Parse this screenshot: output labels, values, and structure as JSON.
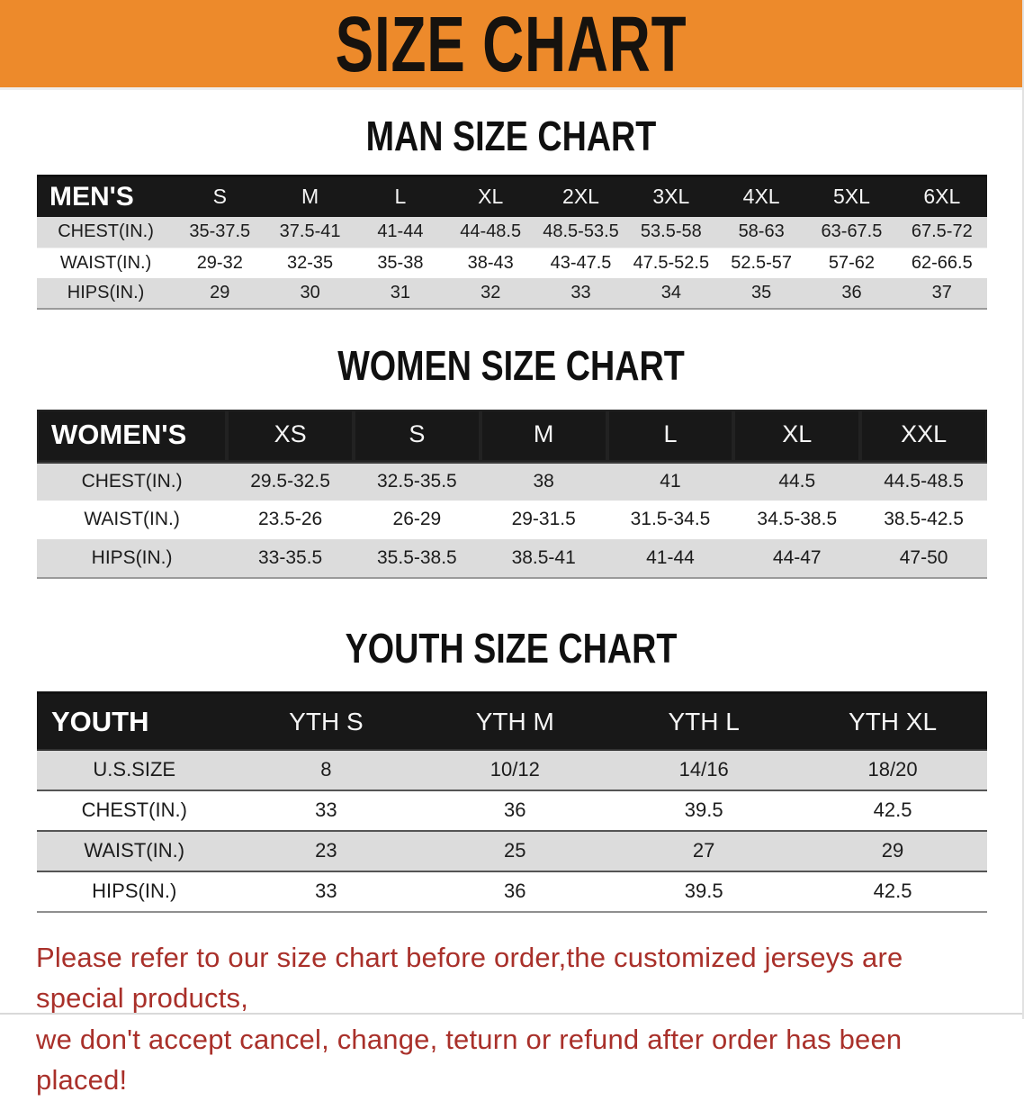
{
  "banner": {
    "title": "SIZE CHART"
  },
  "colors": {
    "banner_bg": "#ED8A2B",
    "header_bar": "#181818",
    "row_alt": "#DCDCDC",
    "disclaimer_text": "#A9302A"
  },
  "sections": {
    "men": {
      "title": "MAN SIZE CHART",
      "table": {
        "header": [
          "MEN'S",
          "S",
          "M",
          "L",
          "XL",
          "2XL",
          "3XL",
          "4XL",
          "5XL",
          "6XL"
        ],
        "rows": [
          [
            "CHEST(IN.)",
            "35-37.5",
            "37.5-41",
            "41-44",
            "44-48.5",
            "48.5-53.5",
            "53.5-58",
            "58-63",
            "63-67.5",
            "67.5-72"
          ],
          [
            "WAIST(IN.)",
            "29-32",
            "32-35",
            "35-38",
            "38-43",
            "43-47.5",
            "47.5-52.5",
            "52.5-57",
            "57-62",
            "62-66.5"
          ],
          [
            "HIPS(IN.)",
            "29",
            "30",
            "31",
            "32",
            "33",
            "34",
            "35",
            "36",
            "37"
          ]
        ]
      }
    },
    "women": {
      "title": "WOMEN SIZE CHART",
      "table": {
        "header": [
          "WOMEN'S",
          "XS",
          "S",
          "M",
          "L",
          "XL",
          "XXL"
        ],
        "rows": [
          [
            "CHEST(IN.)",
            "29.5-32.5",
            "32.5-35.5",
            "38",
            "41",
            "44.5",
            "44.5-48.5"
          ],
          [
            "WAIST(IN.)",
            "23.5-26",
            "26-29",
            "29-31.5",
            "31.5-34.5",
            "34.5-38.5",
            "38.5-42.5"
          ],
          [
            "HIPS(IN.)",
            "33-35.5",
            "35.5-38.5",
            "38.5-41",
            "41-44",
            "44-47",
            "47-50"
          ]
        ]
      }
    },
    "youth": {
      "title": "YOUTH SIZE CHART",
      "table": {
        "header": [
          "YOUTH",
          "YTH S",
          "YTH M",
          "YTH L",
          "YTH XL"
        ],
        "rows": [
          [
            "U.S.SIZE",
            "8",
            "10/12",
            "14/16",
            "18/20"
          ],
          [
            "CHEST(IN.)",
            "33",
            "36",
            "39.5",
            "42.5"
          ],
          [
            "WAIST(IN.)",
            "23",
            "25",
            "27",
            "29"
          ],
          [
            "HIPS(IN.)",
            "33",
            "36",
            "39.5",
            "42.5"
          ]
        ]
      }
    }
  },
  "footer": {
    "line1": "Please refer to our size chart before order,the customized jerseys are special products,",
    "line2": "we don't accept cancel, change, teturn or refund after order has been placed!"
  }
}
